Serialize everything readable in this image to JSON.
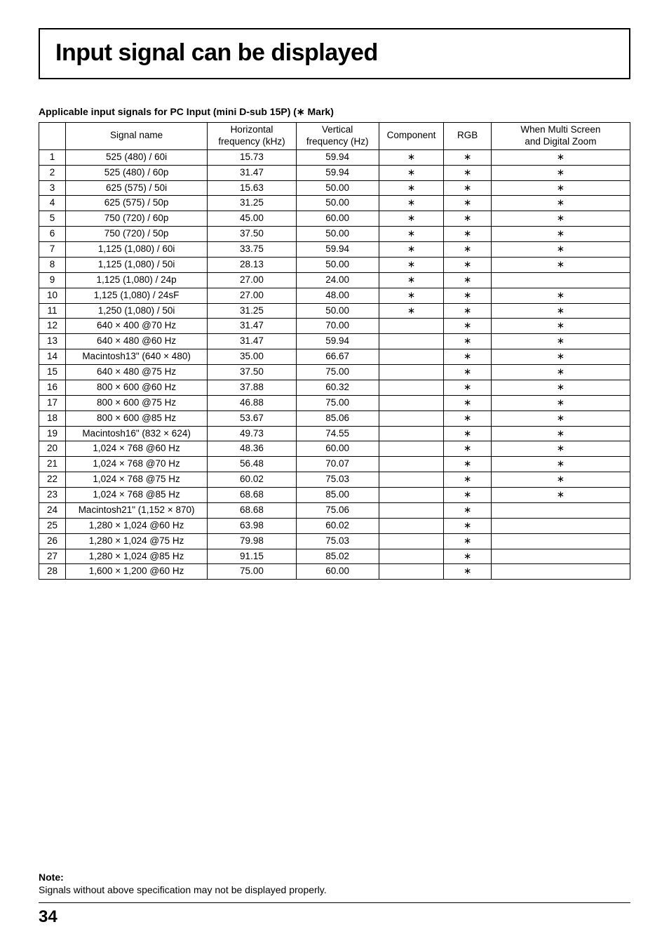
{
  "title": "Input signal can be displayed",
  "subtitle": "Applicable input signals for PC Input (mini D-sub 15P) (∗ Mark)",
  "headers": {
    "idx": "",
    "signal": "Signal name",
    "hfreq_l1": "Horizontal",
    "hfreq_l2": "frequency (kHz)",
    "vfreq_l1": "Vertical",
    "vfreq_l2": "frequency (Hz)",
    "component": "Component",
    "rgb": "RGB",
    "multi_l1": "When Multi Screen",
    "multi_l2": "and Digital Zoom"
  },
  "mark": "∗",
  "rows": [
    {
      "n": "1",
      "name": "525 (480) / 60i",
      "h": "15.73",
      "v": "59.94",
      "c": true,
      "r": true,
      "m": true
    },
    {
      "n": "2",
      "name": "525 (480) / 60p",
      "h": "31.47",
      "v": "59.94",
      "c": true,
      "r": true,
      "m": true
    },
    {
      "n": "3",
      "name": "625 (575) / 50i",
      "h": "15.63",
      "v": "50.00",
      "c": true,
      "r": true,
      "m": true
    },
    {
      "n": "4",
      "name": "625 (575) / 50p",
      "h": "31.25",
      "v": "50.00",
      "c": true,
      "r": true,
      "m": true
    },
    {
      "n": "5",
      "name": "750 (720) / 60p",
      "h": "45.00",
      "v": "60.00",
      "c": true,
      "r": true,
      "m": true
    },
    {
      "n": "6",
      "name": "750 (720) / 50p",
      "h": "37.50",
      "v": "50.00",
      "c": true,
      "r": true,
      "m": true
    },
    {
      "n": "7",
      "name": "1,125 (1,080) / 60i",
      "h": "33.75",
      "v": "59.94",
      "c": true,
      "r": true,
      "m": true
    },
    {
      "n": "8",
      "name": "1,125 (1,080) / 50i",
      "h": "28.13",
      "v": "50.00",
      "c": true,
      "r": true,
      "m": true
    },
    {
      "n": "9",
      "name": "1,125 (1,080) / 24p",
      "h": "27.00",
      "v": "24.00",
      "c": true,
      "r": true,
      "m": false
    },
    {
      "n": "10",
      "name": "1,125 (1,080) / 24sF",
      "h": "27.00",
      "v": "48.00",
      "c": true,
      "r": true,
      "m": true
    },
    {
      "n": "11",
      "name": "1,250 (1,080) / 50i",
      "h": "31.25",
      "v": "50.00",
      "c": true,
      "r": true,
      "m": true
    },
    {
      "n": "12",
      "name": "640 × 400 @70 Hz",
      "h": "31.47",
      "v": "70.00",
      "c": false,
      "r": true,
      "m": true
    },
    {
      "n": "13",
      "name": "640 × 480 @60 Hz",
      "h": "31.47",
      "v": "59.94",
      "c": false,
      "r": true,
      "m": true
    },
    {
      "n": "14",
      "name": "Macintosh13\" (640 × 480)",
      "h": "35.00",
      "v": "66.67",
      "c": false,
      "r": true,
      "m": true
    },
    {
      "n": "15",
      "name": "640 × 480 @75 Hz",
      "h": "37.50",
      "v": "75.00",
      "c": false,
      "r": true,
      "m": true
    },
    {
      "n": "16",
      "name": "800 × 600 @60 Hz",
      "h": "37.88",
      "v": "60.32",
      "c": false,
      "r": true,
      "m": true
    },
    {
      "n": "17",
      "name": "800 × 600 @75 Hz",
      "h": "46.88",
      "v": "75.00",
      "c": false,
      "r": true,
      "m": true
    },
    {
      "n": "18",
      "name": "800 × 600 @85 Hz",
      "h": "53.67",
      "v": "85.06",
      "c": false,
      "r": true,
      "m": true
    },
    {
      "n": "19",
      "name": "Macintosh16\" (832 × 624)",
      "h": "49.73",
      "v": "74.55",
      "c": false,
      "r": true,
      "m": true
    },
    {
      "n": "20",
      "name": "1,024 × 768 @60 Hz",
      "h": "48.36",
      "v": "60.00",
      "c": false,
      "r": true,
      "m": true
    },
    {
      "n": "21",
      "name": "1,024 × 768 @70 Hz",
      "h": "56.48",
      "v": "70.07",
      "c": false,
      "r": true,
      "m": true
    },
    {
      "n": "22",
      "name": "1,024 × 768 @75 Hz",
      "h": "60.02",
      "v": "75.03",
      "c": false,
      "r": true,
      "m": true
    },
    {
      "n": "23",
      "name": "1,024 × 768 @85 Hz",
      "h": "68.68",
      "v": "85.00",
      "c": false,
      "r": true,
      "m": true
    },
    {
      "n": "24",
      "name": "Macintosh21\" (1,152 × 870)",
      "h": "68.68",
      "v": "75.06",
      "c": false,
      "r": true,
      "m": false
    },
    {
      "n": "25",
      "name": "1,280 × 1,024 @60 Hz",
      "h": "63.98",
      "v": "60.02",
      "c": false,
      "r": true,
      "m": false
    },
    {
      "n": "26",
      "name": "1,280 × 1,024 @75 Hz",
      "h": "79.98",
      "v": "75.03",
      "c": false,
      "r": true,
      "m": false
    },
    {
      "n": "27",
      "name": "1,280 × 1,024 @85 Hz",
      "h": "91.15",
      "v": "85.02",
      "c": false,
      "r": true,
      "m": false
    },
    {
      "n": "28",
      "name": "1,600 × 1,200 @60 Hz",
      "h": "75.00",
      "v": "60.00",
      "c": false,
      "r": true,
      "m": false
    }
  ],
  "note_label": "Note:",
  "note_text": "Signals without above specification may not be displayed properly.",
  "page_number": "34"
}
